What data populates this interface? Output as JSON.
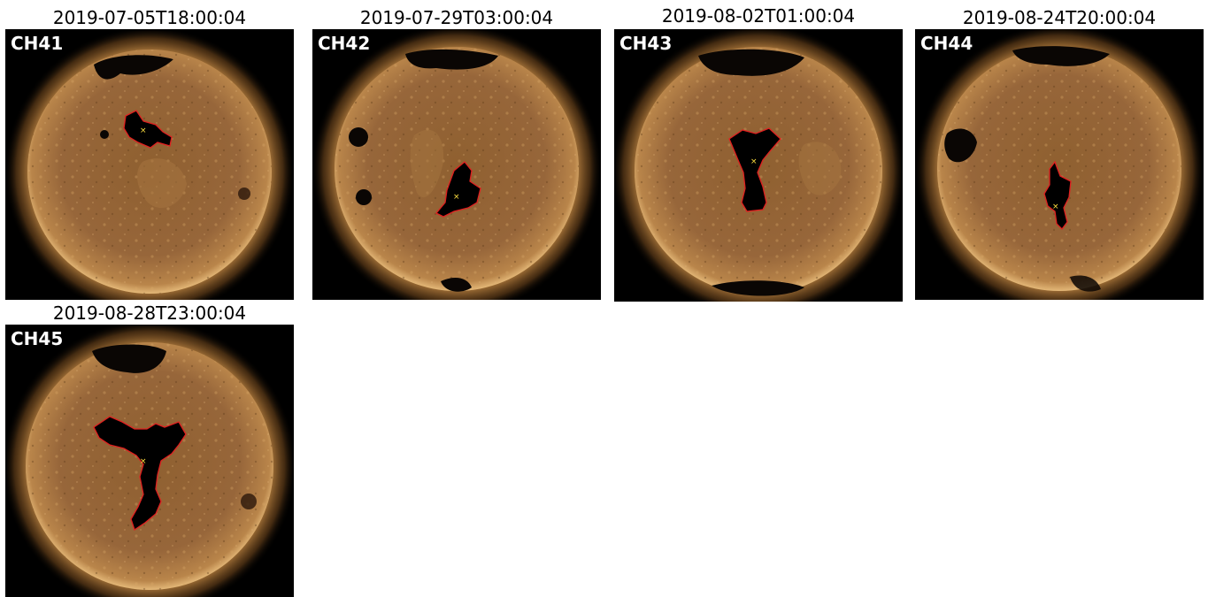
{
  "panels": [
    {
      "title": "2019-07-05T18:00:04",
      "label": "CH41"
    },
    {
      "title": "2019-07-29T03:00:04",
      "label": "CH42"
    },
    {
      "title": "2019-08-02T01:00:04",
      "label": "CH43"
    },
    {
      "title": "2019-08-24T20:00:04",
      "label": "CH44"
    },
    {
      "title": "2019-08-28T23:00:04",
      "label": "CH45"
    }
  ],
  "colors": {
    "background": "#000000",
    "sun_disk": "#9a6a34",
    "sun_limb": "#d8a864",
    "coronal_hole": "#000000",
    "contour": "#e02020",
    "centroid_marker": "#ffe040",
    "label_text": "#ffffff",
    "title_text": "#000000"
  }
}
